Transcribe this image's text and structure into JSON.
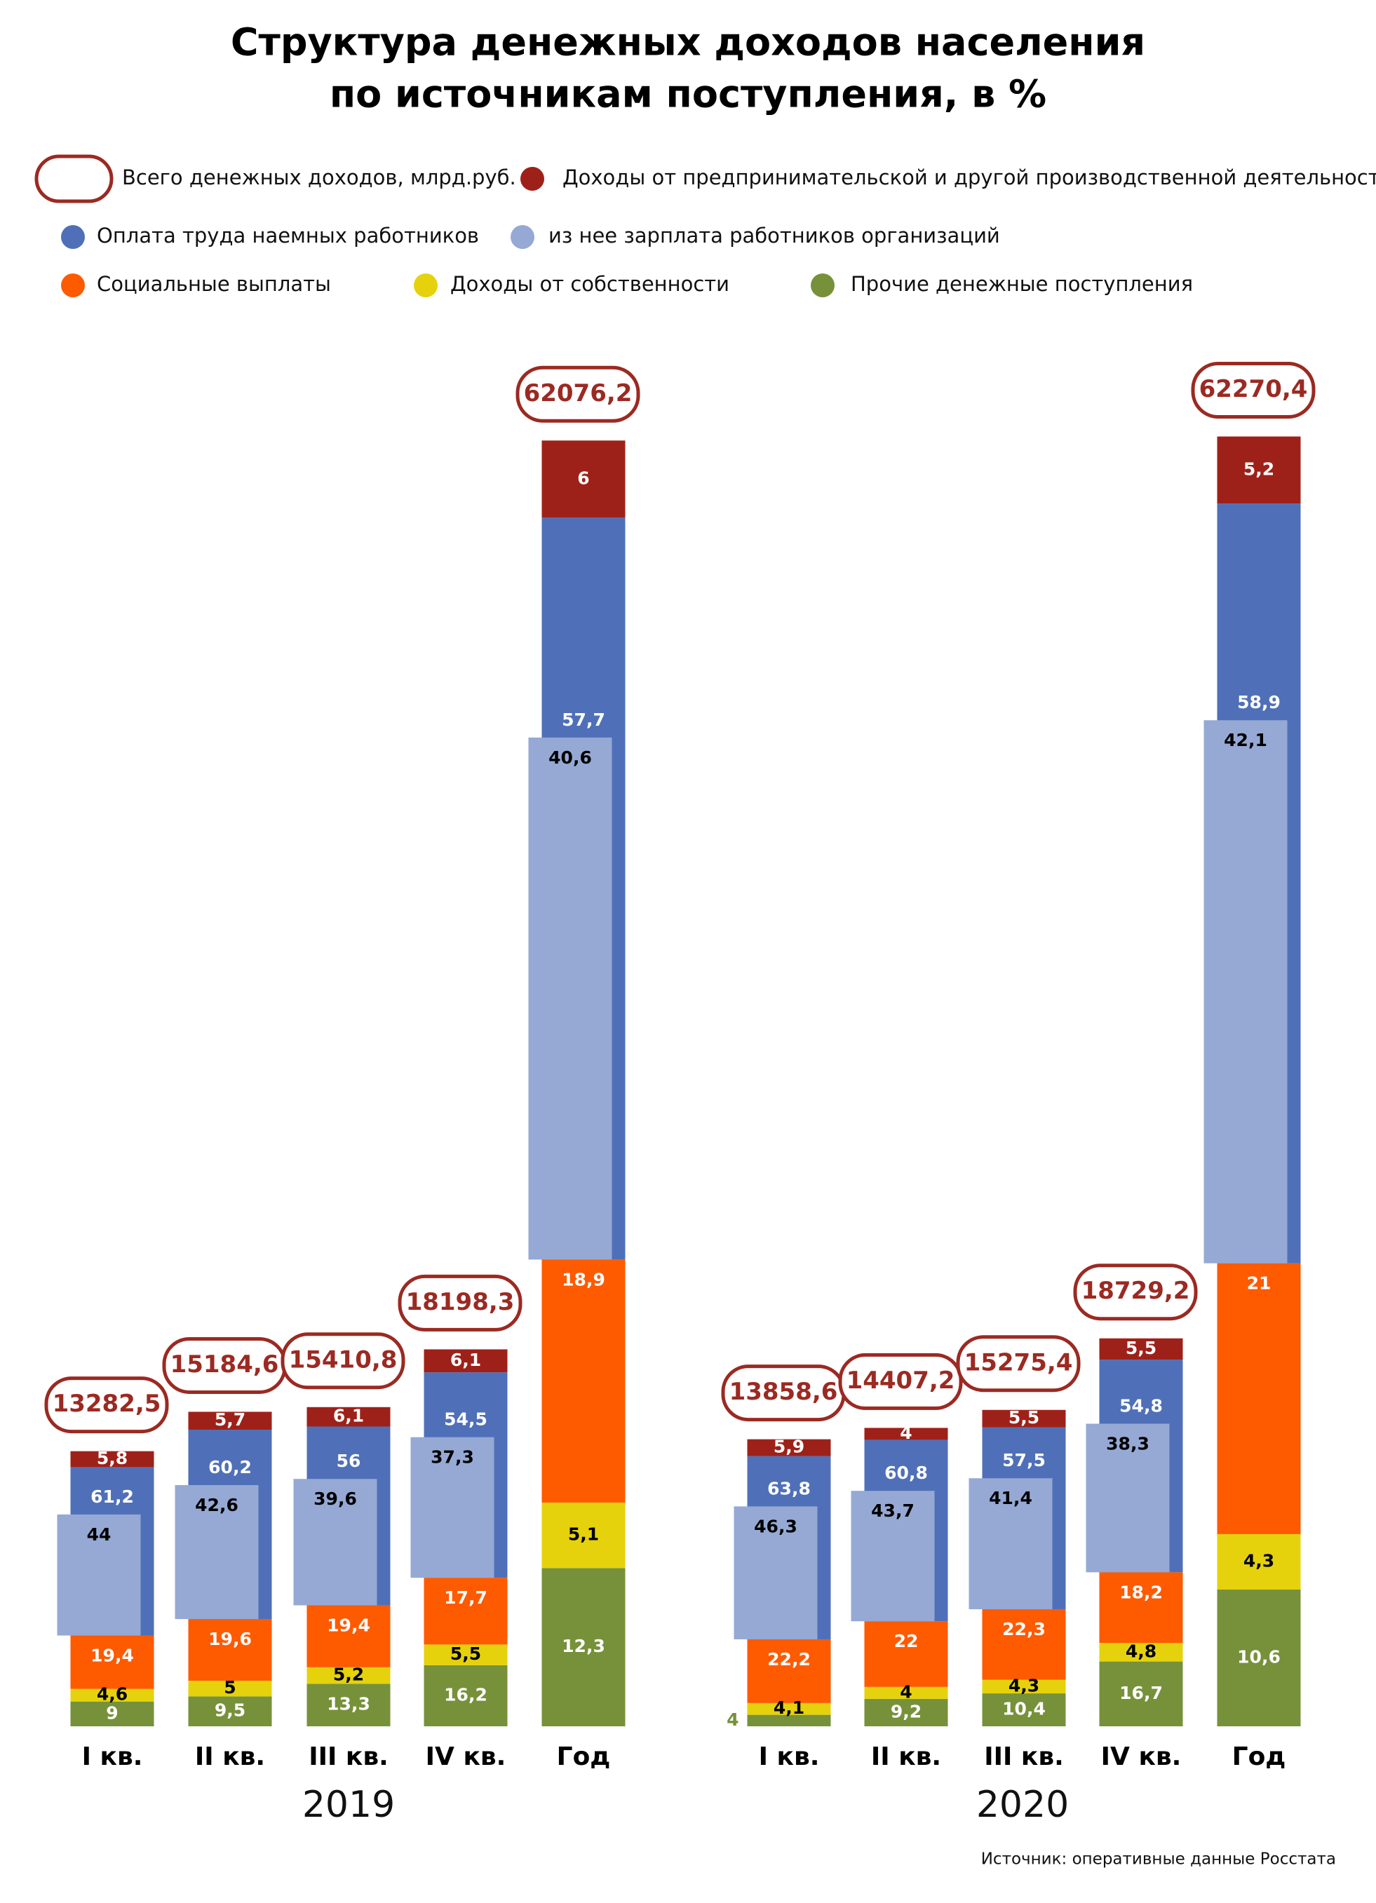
{
  "chart_data": {
    "type": "bar",
    "title": [
      "Структура денежных доходов населения",
      "по источникам поступления, в %"
    ],
    "groups": [
      "2019",
      "2020"
    ],
    "categories": [
      "I кв.",
      "II кв.",
      "III кв.",
      "IV кв.",
      "Год",
      "I кв.",
      "II кв.",
      "III кв.",
      "IV кв.",
      "Год"
    ],
    "totals": {
      "name": "Всего денежных доходов, млрд.руб.",
      "color": "#9b2a22",
      "values": [
        13282.5,
        15184.6,
        15410.8,
        18198.3,
        62076.2,
        13858.6,
        14407.2,
        15275.4,
        18729.2,
        62270.4
      ],
      "value_labels": [
        "13282,5",
        "15184,6",
        "15410,8",
        "18198,3",
        "62076,2",
        "13858,6",
        "14407,2",
        "15275,4",
        "18729,2",
        "62270,4"
      ]
    },
    "series": [
      {
        "name": "Доходы от предпринимательской и другой производственной деятельности",
        "color": "#9e2119",
        "values": [
          5.8,
          5.7,
          6.1,
          6.1,
          6,
          5.9,
          4,
          5.5,
          5.5,
          5.2
        ],
        "value_labels": [
          "5,8",
          "5,7",
          "6,1",
          "6,1",
          "6",
          "5,9",
          "4",
          "5,5",
          "5,5",
          "5,2"
        ]
      },
      {
        "name": "Оплата труда наемных работников",
        "color": "#4f70b8",
        "values": [
          61.2,
          60.2,
          56,
          54.5,
          57.7,
          63.8,
          60.8,
          57.5,
          54.8,
          58.9
        ],
        "value_labels": [
          "61,2",
          "60,2",
          "56",
          "54,5",
          "57,7",
          "63,8",
          "60,8",
          "57,5",
          "54,8",
          "58,9"
        ]
      },
      {
        "name": "из нее зарплата работников организаций",
        "color": "#95a9d4",
        "overlay": true,
        "values": [
          44,
          42.6,
          39.6,
          37.3,
          40.6,
          46.3,
          43.7,
          41.4,
          38.3,
          42.1
        ],
        "value_labels": [
          "44",
          "42,6",
          "39,6",
          "37,3",
          "40,6",
          "46,3",
          "43,7",
          "41,4",
          "38,3",
          "42,1"
        ]
      },
      {
        "name": "Социальные выплаты",
        "color": "#fe5a00",
        "values": [
          19.4,
          19.6,
          19.4,
          17.7,
          18.9,
          22.2,
          22,
          22.3,
          18.2,
          21
        ],
        "value_labels": [
          "19,4",
          "19,6",
          "19,4",
          "17,7",
          "18,9",
          "22,2",
          "22",
          "22,3",
          "18,2",
          "21"
        ]
      },
      {
        "name": "Доходы от собственности",
        "color": "#e5d20c",
        "values": [
          4.6,
          5,
          5.2,
          5.5,
          5.1,
          4.1,
          4,
          4.3,
          4.8,
          4.3
        ],
        "value_labels": [
          "4,6",
          "5",
          "5,2",
          "5,5",
          "5,1",
          "4,1",
          "4",
          "4,3",
          "4,8",
          "4,3"
        ]
      },
      {
        "name": "Прочие денежные поступления",
        "color": "#77913a",
        "values": [
          9,
          9.5,
          13.3,
          16.2,
          12.3,
          4,
          9.2,
          10.4,
          16.7,
          10.6
        ],
        "value_labels": [
          "9",
          "9,5",
          "13,3",
          "16,2",
          "12,3",
          "4",
          "9,2",
          "10,4",
          "16,7",
          "10,6"
        ]
      }
    ],
    "source": "Источник: оперативные данные Росстата"
  }
}
